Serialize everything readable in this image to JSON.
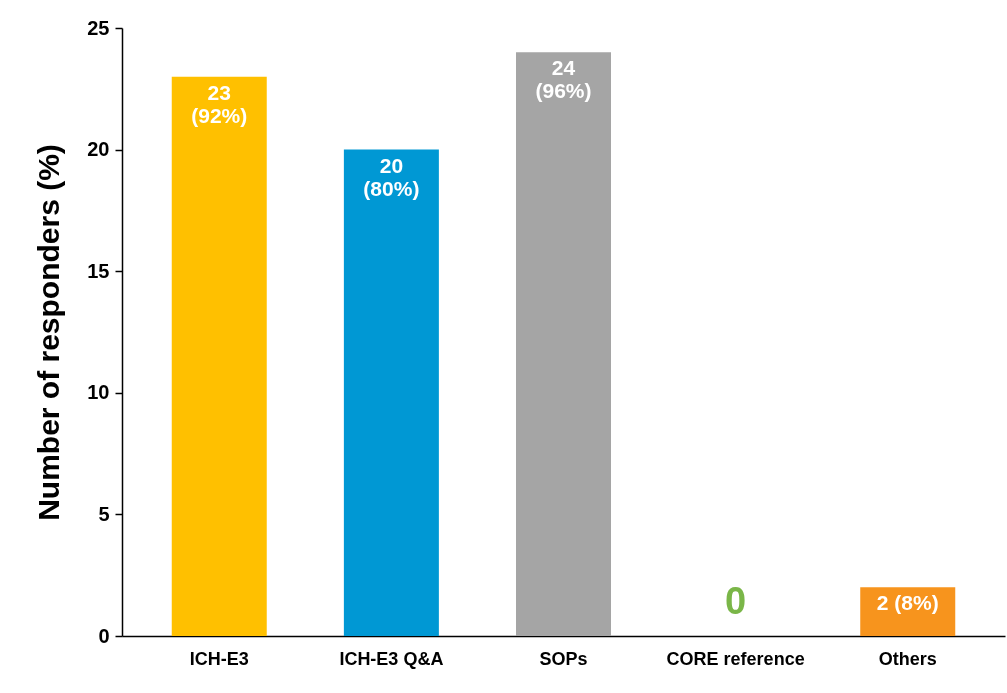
{
  "chart_data": {
    "type": "bar",
    "ylabel": "Number of responders (%)",
    "categories": [
      "ICH-E3",
      "ICH-E3 Q&A",
      "SOPs",
      "CORE reference",
      "Others"
    ],
    "values": [
      23,
      20,
      24,
      0,
      2
    ],
    "colors": [
      "#ffc000",
      "#0098d4",
      "#a5a5a5",
      "#7ab648",
      "#f7941d"
    ],
    "value_labels": [
      "23\n(92%)",
      "20\n(80%)",
      "24\n(96%)",
      "0",
      "2 (8%)"
    ],
    "ylim": [
      0,
      25
    ],
    "yticks": [
      0,
      5,
      10,
      15,
      20,
      25
    ],
    "grid": false
  }
}
